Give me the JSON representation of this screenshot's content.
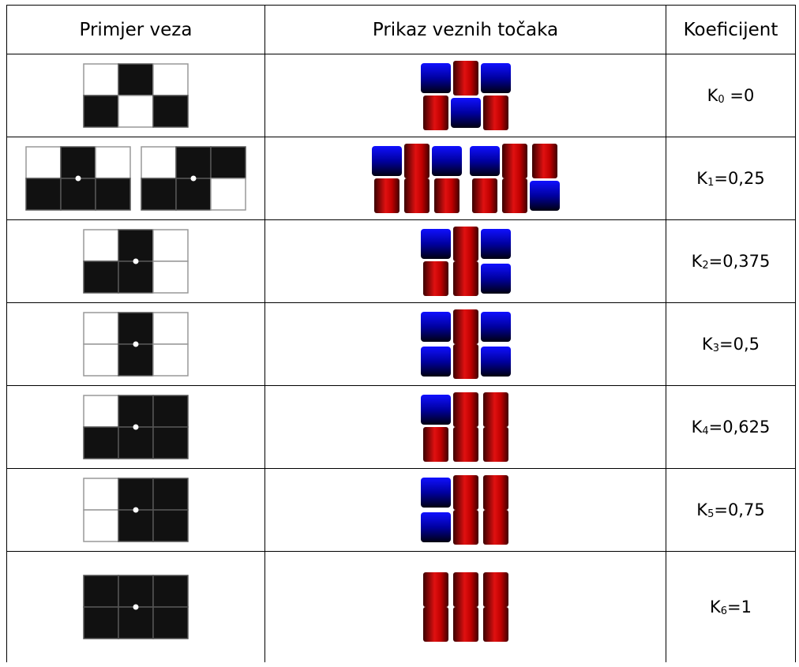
{
  "table": {
    "header": [
      "Primjer veza",
      "Prikaz veznih točaka",
      "Koeficijent"
    ],
    "rows": [
      {
        "symbol": "K",
        "subscript": "0",
        "value": " =0"
      },
      {
        "symbol": "K",
        "subscript": "1",
        "value": "=0,25"
      },
      {
        "symbol": "K",
        "subscript": "2",
        "value": "=0,375"
      },
      {
        "symbol": "K",
        "subscript": "3",
        "value": "=0,5"
      },
      {
        "symbol": "K",
        "subscript": "4",
        "value": "=0,625"
      },
      {
        "symbol": "K",
        "subscript": "5",
        "value": "=0,75"
      },
      {
        "symbol": "K",
        "subscript": "6",
        "value": "=1"
      }
    ]
  }
}
